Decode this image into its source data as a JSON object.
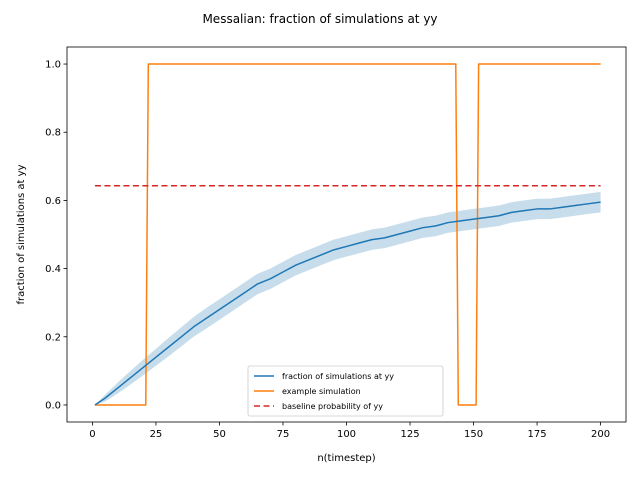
{
  "chart_data": {
    "type": "line",
    "title": "Messalian: fraction of simulations at yy",
    "xlabel": "n(timestep)",
    "ylabel": "fraction of simulations at yy",
    "xlim": [
      -10,
      210
    ],
    "ylim": [
      -0.05,
      1.05
    ],
    "xticks": [
      0,
      25,
      50,
      75,
      100,
      125,
      150,
      175,
      200
    ],
    "yticks": [
      0.0,
      0.2,
      0.4,
      0.6,
      0.8,
      1.0
    ],
    "ytick_labels": [
      "0.0",
      "0.2",
      "0.4",
      "0.6",
      "0.8",
      "1.0"
    ],
    "grid": false,
    "legend_position": "lower center",
    "series": [
      {
        "name": "fraction of simulations at yy",
        "color": "#1f77b4",
        "band_color": "#1f77b4",
        "x": [
          1,
          5,
          10,
          15,
          20,
          25,
          30,
          35,
          40,
          45,
          50,
          55,
          60,
          65,
          70,
          75,
          80,
          85,
          90,
          95,
          100,
          105,
          110,
          115,
          120,
          125,
          130,
          135,
          140,
          145,
          150,
          155,
          160,
          165,
          170,
          175,
          180,
          185,
          190,
          195,
          200
        ],
        "y": [
          0.0,
          0.02,
          0.05,
          0.08,
          0.11,
          0.14,
          0.17,
          0.2,
          0.23,
          0.255,
          0.28,
          0.305,
          0.33,
          0.355,
          0.37,
          0.39,
          0.41,
          0.425,
          0.44,
          0.455,
          0.465,
          0.475,
          0.485,
          0.49,
          0.5,
          0.51,
          0.52,
          0.525,
          0.535,
          0.54,
          0.545,
          0.55,
          0.555,
          0.565,
          0.57,
          0.575,
          0.575,
          0.58,
          0.585,
          0.59,
          0.595
        ],
        "band_halfwidth": [
          0.0,
          0.01,
          0.016,
          0.02,
          0.023,
          0.025,
          0.027,
          0.028,
          0.029,
          0.03,
          0.03,
          0.03,
          0.03,
          0.03,
          0.03,
          0.03,
          0.03,
          0.03,
          0.03,
          0.03,
          0.03,
          0.03,
          0.03,
          0.03,
          0.03,
          0.03,
          0.03,
          0.03,
          0.03,
          0.03,
          0.03,
          0.03,
          0.03,
          0.03,
          0.03,
          0.03,
          0.03,
          0.03,
          0.03,
          0.03,
          0.03
        ]
      },
      {
        "name": "example simulation",
        "color": "#ff7f0e",
        "x": [
          1,
          21,
          22,
          143,
          144,
          151,
          152,
          200
        ],
        "y": [
          0,
          0,
          1,
          1,
          0,
          0,
          1,
          1
        ]
      },
      {
        "name": "baseline probability of yy",
        "color": "#d62728",
        "style": "dashed",
        "x": [
          1,
          200
        ],
        "y": [
          0.643,
          0.643
        ]
      }
    ]
  }
}
